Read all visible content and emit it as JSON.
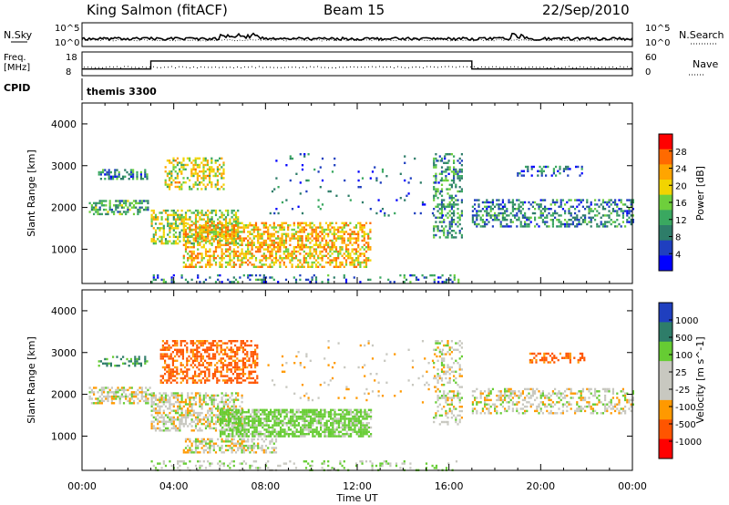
{
  "header": {
    "station": "King Salmon (fitACF)",
    "beam": "Beam 15",
    "date": "22/Sep/2010"
  },
  "summary_panels": {
    "nsky_label": "N.Sky",
    "nsearch_label": "N.Search",
    "freq_label_1": "Freq.",
    "freq_label_2": "[MHz]",
    "nave_label": "Nave",
    "cpid_label": "CPID",
    "cpid_value": "themis 3300",
    "noise_left_ticks": [
      "10^5",
      "10^0"
    ],
    "noise_right_ticks": [
      "10^5",
      "10^0"
    ],
    "freq_left_ticks": [
      "18",
      "8"
    ],
    "freq_right_ticks": [
      "60",
      "0"
    ]
  },
  "colorbars": {
    "power": {
      "label": "Power [dB]",
      "ticks": [
        "28",
        "24",
        "20",
        "16",
        "12",
        "8",
        "4"
      ],
      "colors": [
        "#ff0000",
        "#ff6a00",
        "#ffa500",
        "#f2d400",
        "#6ecf3c",
        "#3aa860",
        "#2e7d69",
        "#1f3fbf",
        "#0000ff"
      ]
    },
    "velocity": {
      "label": "Velocity [m s^-1]",
      "ticks": [
        "1000",
        "500",
        "100",
        "25",
        "-25",
        "-100",
        "-500",
        "-1000"
      ],
      "colors": [
        "#1f3fbf",
        "#2e7d69",
        "#66cc33",
        "#c8c8c0",
        "#c8c8c0",
        "#ff9900",
        "#ff5500",
        "#ff0000"
      ]
    }
  },
  "chart_data": [
    {
      "type": "heatmap",
      "name": "power",
      "xlabel": "",
      "ylabel": "Slant Range [km]",
      "xlim": [
        0,
        24
      ],
      "ylim": [
        180,
        4500
      ],
      "yticks": [
        1000,
        2000,
        3000,
        4000
      ],
      "colorbar_label": "Power [dB]",
      "clim": [
        0,
        30
      ],
      "scatter_regions": [
        {
          "t0": 0.3,
          "t1": 3.0,
          "r0": 1820,
          "r1": 2180,
          "level": 11,
          "density": 0.55
        },
        {
          "t0": 0.7,
          "t1": 2.8,
          "r0": 2660,
          "r1": 2920,
          "level": 8,
          "density": 0.45
        },
        {
          "t0": 3.0,
          "t1": 6.8,
          "r0": 1150,
          "r1": 1950,
          "level": 16,
          "density": 0.5
        },
        {
          "t0": 3.6,
          "t1": 6.2,
          "r0": 2450,
          "r1": 3200,
          "level": 18,
          "density": 0.45
        },
        {
          "t0": 4.4,
          "t1": 12.6,
          "r0": 580,
          "r1": 1650,
          "level": 21,
          "density": 0.55
        },
        {
          "t0": 3.0,
          "t1": 16.5,
          "r0": 200,
          "r1": 400,
          "level": 7,
          "density": 0.2
        },
        {
          "t0": 15.3,
          "t1": 16.6,
          "r0": 1300,
          "r1": 3300,
          "level": 10,
          "density": 0.35
        },
        {
          "t0": 17.0,
          "t1": 24.0,
          "r0": 1550,
          "r1": 2200,
          "level": 8,
          "density": 0.45
        },
        {
          "t0": 18.7,
          "t1": 21.9,
          "r0": 2750,
          "r1": 3000,
          "level": 6,
          "density": 0.25
        },
        {
          "t0": 8.0,
          "t1": 16.0,
          "r0": 1800,
          "r1": 3300,
          "level": 5,
          "density": 0.03
        }
      ]
    },
    {
      "type": "heatmap",
      "name": "velocity",
      "xlabel": "Time UT",
      "ylabel": "Slant Range [km]",
      "xlim": [
        0,
        24
      ],
      "ylim": [
        180,
        4500
      ],
      "yticks": [
        1000,
        2000,
        3000,
        4000
      ],
      "xticks": [
        "00:00",
        "04:00",
        "08:00",
        "12:00",
        "16:00",
        "20:00",
        "00:00"
      ],
      "colorbar_label": "Velocity [m s^-1]",
      "scatter_regions": [
        {
          "t0": 0.3,
          "t1": 3.0,
          "r0": 1780,
          "r1": 2180,
          "velocity": 0,
          "density": 0.6
        },
        {
          "t0": 3.0,
          "t1": 7.0,
          "r0": 1150,
          "r1": 2050,
          "velocity": 0,
          "density": 0.55
        },
        {
          "t0": 3.4,
          "t1": 7.6,
          "r0": 2300,
          "r1": 3300,
          "velocity": -300,
          "density": 0.5
        },
        {
          "t0": 0.7,
          "t1": 2.8,
          "r0": 2660,
          "r1": 2920,
          "velocity": 300,
          "density": 0.4
        },
        {
          "t0": 6.0,
          "t1": 12.6,
          "r0": 1000,
          "r1": 1650,
          "velocity": 100,
          "density": 0.75
        },
        {
          "t0": 4.4,
          "t1": 8.5,
          "r0": 600,
          "r1": 950,
          "velocity": 0,
          "density": 0.55
        },
        {
          "t0": 3.0,
          "t1": 16.5,
          "r0": 200,
          "r1": 420,
          "velocity": 50,
          "density": 0.2
        },
        {
          "t0": 15.3,
          "t1": 16.6,
          "r0": 1300,
          "r1": 3300,
          "velocity": 0,
          "density": 0.35
        },
        {
          "t0": 17.0,
          "t1": 24.0,
          "r0": 1550,
          "r1": 2150,
          "velocity": 0,
          "density": 0.4
        },
        {
          "t0": 19.5,
          "t1": 21.9,
          "r0": 2750,
          "r1": 3000,
          "velocity": -300,
          "density": 0.4
        },
        {
          "t0": 8.0,
          "t1": 16.0,
          "r0": 1800,
          "r1": 3300,
          "velocity": -50,
          "density": 0.03
        }
      ]
    }
  ],
  "freq_trace": {
    "segments": [
      {
        "t0": 0.0,
        "t1": 3.0,
        "level": 0.28
      },
      {
        "t0": 3.0,
        "t1": 17.0,
        "level": 0.62
      },
      {
        "t0": 17.0,
        "t1": 24.0,
        "level": 0.28
      }
    ]
  }
}
